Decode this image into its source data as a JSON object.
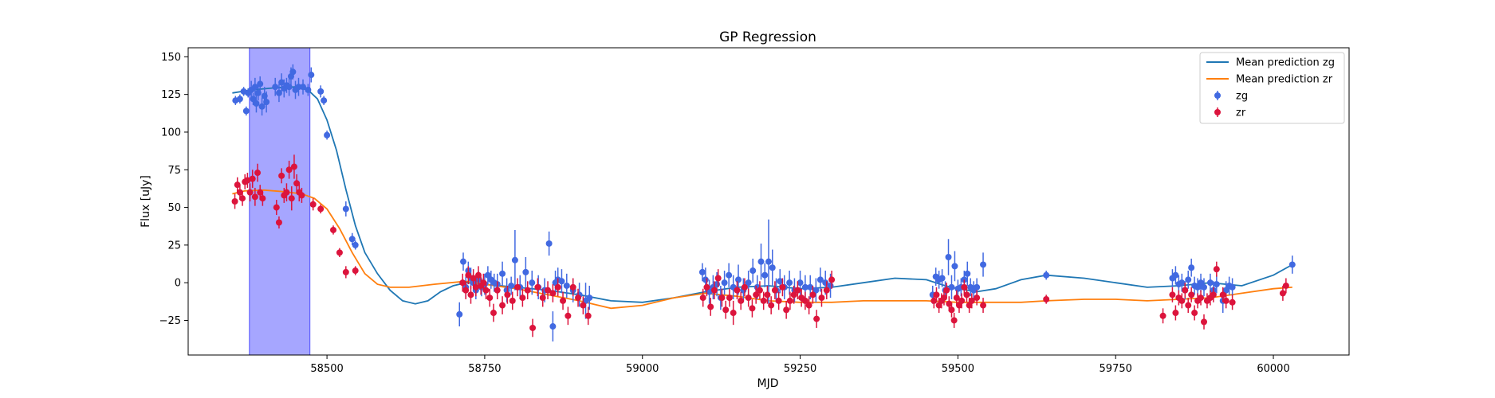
{
  "chart_data": {
    "type": "scatter",
    "title": "GP Regression",
    "xlabel": "MJD",
    "ylabel": "Flux [uJy]",
    "xlim": [
      58280,
      60120
    ],
    "ylim": [
      -48,
      156
    ],
    "xticks": [
      58500,
      58750,
      59000,
      59250,
      59500,
      59750,
      60000
    ],
    "xtick_labels": [
      "58500",
      "58750",
      "59000",
      "59250",
      "59500",
      "59750",
      "60000"
    ],
    "yticks": [
      -25,
      0,
      25,
      50,
      75,
      100,
      125,
      150
    ],
    "ytick_labels": [
      "−25",
      "0",
      "25",
      "50",
      "75",
      "100",
      "125",
      "150"
    ],
    "grid": false,
    "legend_position": "upper-right",
    "colors": {
      "zg_points": "#4169e1",
      "zr_points": "#dc143c",
      "zg_line": "#1f77b4",
      "zr_line": "#ff7f0e",
      "span": "#0000ff"
    },
    "shaded_region": {
      "x_start": 58377,
      "x_end": 58473,
      "color": "#0000ff",
      "opacity": 0.35
    },
    "lines": [
      {
        "name": "Mean prediction zg",
        "color": "#1f77b4",
        "x": [
          58350,
          58380,
          58420,
          58450,
          58470,
          58485,
          58500,
          58515,
          58530,
          58545,
          58560,
          58580,
          58600,
          58620,
          58640,
          58660,
          58680,
          58700,
          58720,
          58750,
          58800,
          58850,
          58900,
          58950,
          59000,
          59050,
          59100,
          59150,
          59200,
          59250,
          59300,
          59350,
          59400,
          59450,
          59480,
          59500,
          59530,
          59560,
          59600,
          59640,
          59700,
          59750,
          59800,
          59850,
          59900,
          59950,
          60000,
          60030
        ],
        "y": [
          126,
          128,
          129.5,
          130,
          128,
          122,
          108,
          88,
          62,
          38,
          20,
          6,
          -5,
          -12,
          -14,
          -12,
          -6,
          -2,
          0,
          -1,
          -3,
          -5,
          -8,
          -12,
          -13,
          -10,
          -6,
          -3,
          -2,
          -4,
          -3,
          0,
          3,
          2,
          -2,
          -4,
          -6,
          -4,
          2,
          5,
          3,
          0,
          -3,
          -2,
          0,
          -2,
          5,
          12
        ]
      },
      {
        "name": "Mean prediction zr",
        "color": "#ff7f0e",
        "x": [
          58350,
          58370,
          58400,
          58430,
          58460,
          58480,
          58500,
          58520,
          58540,
          58560,
          58580,
          58600,
          58630,
          58670,
          58720,
          58750,
          58800,
          58850,
          58900,
          58950,
          59000,
          59050,
          59100,
          59150,
          59200,
          59250,
          59300,
          59350,
          59400,
          59450,
          59500,
          59550,
          59600,
          59640,
          59700,
          59750,
          59800,
          59850,
          59900,
          59950,
          60000,
          60030
        ],
        "y": [
          59,
          61,
          61.5,
          60.5,
          59,
          56,
          49,
          36,
          20,
          6,
          -1,
          -3,
          -3,
          -1,
          1,
          -1,
          -4,
          -8,
          -12,
          -17,
          -15,
          -10,
          -7,
          -9,
          -12,
          -13,
          -13,
          -12,
          -12,
          -12,
          -13,
          -13,
          -13,
          -12,
          -11,
          -11,
          -12,
          -11,
          -10,
          -7,
          -4,
          -3
        ]
      }
    ],
    "series": [
      {
        "name": "zg",
        "color": "#4169e1",
        "x": [
          58355,
          58362,
          58368,
          58372,
          58375,
          58380,
          58383,
          58386,
          58388,
          58391,
          58394,
          58397,
          58401,
          58404,
          58418,
          58424,
          58428,
          58432,
          58436,
          58440,
          58443,
          58446,
          58450,
          58455,
          58462,
          58470,
          58475,
          58490,
          58495,
          58500,
          58530,
          58540,
          58545,
          58710,
          58716,
          58720,
          58724,
          58728,
          58732,
          58736,
          58740,
          58745,
          58750,
          58755,
          58760,
          58765,
          58770,
          58778,
          58785,
          58792,
          58798,
          58806,
          58815,
          58825,
          58835,
          58845,
          58852,
          58858,
          58862,
          58866,
          58872,
          58880,
          58890,
          58900,
          58910,
          58916,
          59095,
          59100,
          59106,
          59112,
          59118,
          59124,
          59130,
          59137,
          59144,
          59152,
          59160,
          59168,
          59175,
          59182,
          59188,
          59194,
          59200,
          59206,
          59212,
          59218,
          59225,
          59233,
          59241,
          59250,
          59258,
          59266,
          59275,
          59282,
          59290,
          59298,
          59460,
          59465,
          59470,
          59475,
          59480,
          59485,
          59490,
          59495,
          59500,
          59505,
          59510,
          59515,
          59520,
          59525,
          59530,
          59540,
          59640,
          59840,
          59845,
          59850,
          59855,
          59860,
          59865,
          59870,
          59875,
          59880,
          59885,
          59890,
          59900,
          59905,
          59910,
          59920,
          59925,
          59930,
          59935,
          60030
        ],
        "y": [
          121,
          122,
          127,
          114,
          126,
          128,
          122,
          130,
          119,
          126,
          132,
          117,
          124,
          120,
          130,
          126,
          133,
          129,
          131,
          130,
          137,
          140,
          128,
          130,
          130,
          128,
          138,
          127,
          121,
          98,
          49,
          29,
          25,
          -21,
          14,
          -3,
          8,
          3,
          0,
          -5,
          2,
          -3,
          -1,
          5,
          2,
          0,
          -1,
          6,
          -5,
          -2,
          15,
          -3,
          7,
          0,
          -3,
          -5,
          26,
          -29,
          0,
          2,
          1,
          -2,
          -5,
          -8,
          -12,
          -10,
          7,
          2,
          -6,
          -3,
          -1,
          -10,
          0,
          5,
          -3,
          2,
          -5,
          0,
          8,
          -3,
          14,
          5,
          14,
          10,
          -5,
          1,
          -3,
          0,
          -5,
          0,
          -3,
          -3,
          -5,
          2,
          0,
          -2,
          -8,
          4,
          2,
          3,
          -5,
          17,
          -3,
          11,
          -4,
          -3,
          2,
          6,
          -3,
          -5,
          -3,
          12,
          5,
          3,
          5,
          -1,
          0,
          -5,
          2,
          10,
          -2,
          -3,
          0,
          -3,
          0,
          -5,
          -1,
          -12,
          -5,
          -2,
          -3,
          12
        ],
        "err": [
          3,
          3,
          3,
          3,
          3,
          6,
          4,
          6,
          6,
          5,
          5,
          6,
          6,
          7,
          6,
          6,
          6,
          6,
          5,
          6,
          6,
          5,
          6,
          6,
          5,
          4,
          5,
          4,
          3,
          3,
          5,
          4,
          3,
          8,
          6,
          7,
          6,
          7,
          6,
          6,
          6,
          6,
          7,
          6,
          6,
          6,
          7,
          8,
          8,
          6,
          20,
          8,
          10,
          8,
          8,
          8,
          8,
          10,
          8,
          8,
          8,
          8,
          8,
          8,
          12,
          8,
          6,
          8,
          8,
          8,
          8,
          8,
          8,
          8,
          8,
          10,
          8,
          8,
          8,
          8,
          12,
          8,
          28,
          12,
          8,
          8,
          8,
          8,
          8,
          8,
          8,
          8,
          8,
          8,
          8,
          8,
          6,
          6,
          6,
          6,
          6,
          12,
          8,
          10,
          6,
          6,
          6,
          8,
          6,
          6,
          6,
          8,
          3,
          6,
          6,
          6,
          6,
          6,
          6,
          6,
          6,
          6,
          6,
          6,
          6,
          6,
          6,
          8,
          6,
          6,
          6,
          6
        ]
      },
      {
        "name": "zr",
        "color": "#dc143c",
        "x": [
          58354,
          58358,
          58362,
          58366,
          58370,
          58374,
          58378,
          58382,
          58386,
          58390,
          58394,
          58398,
          58420,
          58424,
          58428,
          58432,
          58436,
          58440,
          58444,
          58448,
          58452,
          58456,
          58460,
          58478,
          58490,
          58510,
          58520,
          58530,
          58545,
          58715,
          58720,
          58724,
          58728,
          58732,
          58736,
          58740,
          58744,
          58748,
          58752,
          58758,
          58764,
          58770,
          58778,
          58786,
          58794,
          58802,
          58810,
          58818,
          58826,
          58834,
          58842,
          58850,
          58858,
          58866,
          58874,
          58882,
          58890,
          58898,
          58906,
          58914,
          59096,
          59102,
          59108,
          59114,
          59120,
          59126,
          59132,
          59138,
          59144,
          59150,
          59156,
          59162,
          59168,
          59174,
          59180,
          59186,
          59192,
          59198,
          59204,
          59210,
          59216,
          59222,
          59228,
          59234,
          59240,
          59246,
          59252,
          59258,
          59264,
          59270,
          59276,
          59284,
          59292,
          59300,
          59462,
          59466,
          59470,
          59474,
          59478,
          59482,
          59486,
          59490,
          59494,
          59498,
          59502,
          59506,
          59510,
          59514,
          59518,
          59522,
          59530,
          59540,
          59640,
          59825,
          59840,
          59845,
          59850,
          59855,
          59860,
          59865,
          59870,
          59875,
          59880,
          59885,
          59890,
          59895,
          59900,
          59905,
          59910,
          59920,
          59925,
          59935,
          60015,
          60020
        ],
        "y": [
          54,
          65,
          60,
          56,
          67,
          68,
          60,
          69,
          57,
          73,
          60,
          56,
          50,
          40,
          71,
          58,
          60,
          75,
          56,
          77,
          66,
          60,
          58,
          52,
          49,
          35,
          20,
          7,
          8,
          0,
          -5,
          5,
          -8,
          3,
          -3,
          5,
          -2,
          0,
          -5,
          -10,
          -20,
          -5,
          -15,
          -8,
          -12,
          -3,
          -10,
          -5,
          -30,
          -3,
          -10,
          -5,
          -7,
          -3,
          -12,
          -22,
          -3,
          -10,
          -15,
          -22,
          -10,
          -3,
          -16,
          -5,
          3,
          -10,
          -18,
          -10,
          -20,
          -5,
          -12,
          -3,
          -10,
          -17,
          -8,
          -5,
          -12,
          -8,
          -15,
          -5,
          -12,
          -3,
          -18,
          -12,
          -8,
          -5,
          -10,
          -12,
          -15,
          -8,
          -24,
          -10,
          -5,
          2,
          -12,
          -8,
          -15,
          -12,
          -10,
          -5,
          -14,
          -18,
          -25,
          -10,
          -15,
          -12,
          -3,
          -8,
          -15,
          -12,
          -10,
          -15,
          -11,
          -22,
          -8,
          -20,
          -10,
          -12,
          -5,
          -15,
          -8,
          -20,
          -12,
          -10,
          -26,
          -12,
          -10,
          -8,
          9,
          -8,
          -12,
          -13,
          -7,
          -2
        ],
        "err": [
          5,
          5,
          5,
          5,
          5,
          5,
          6,
          6,
          6,
          6,
          5,
          5,
          5,
          4,
          5,
          5,
          6,
          6,
          8,
          8,
          6,
          6,
          5,
          4,
          3,
          3,
          3,
          4,
          3,
          6,
          6,
          6,
          6,
          6,
          6,
          6,
          6,
          6,
          6,
          6,
          6,
          6,
          6,
          6,
          6,
          6,
          6,
          6,
          6,
          6,
          6,
          6,
          6,
          6,
          6,
          6,
          6,
          6,
          6,
          6,
          6,
          6,
          6,
          6,
          6,
          6,
          6,
          6,
          8,
          6,
          6,
          6,
          6,
          6,
          6,
          6,
          6,
          6,
          6,
          6,
          6,
          6,
          6,
          6,
          6,
          6,
          6,
          6,
          6,
          6,
          6,
          6,
          6,
          6,
          5,
          5,
          5,
          5,
          5,
          5,
          5,
          5,
          5,
          5,
          5,
          5,
          5,
          5,
          5,
          5,
          5,
          5,
          3,
          5,
          5,
          5,
          5,
          5,
          5,
          5,
          5,
          5,
          5,
          5,
          5,
          5,
          5,
          5,
          5,
          5,
          5,
          5,
          5,
          5
        ]
      }
    ],
    "legend": [
      {
        "label": "Mean prediction zg",
        "kind": "line",
        "color": "#1f77b4"
      },
      {
        "label": "Mean prediction zr",
        "kind": "line",
        "color": "#ff7f0e"
      },
      {
        "label": "zg",
        "kind": "errorbar",
        "color": "#4169e1"
      },
      {
        "label": "zr",
        "kind": "errorbar",
        "color": "#dc143c"
      }
    ]
  }
}
